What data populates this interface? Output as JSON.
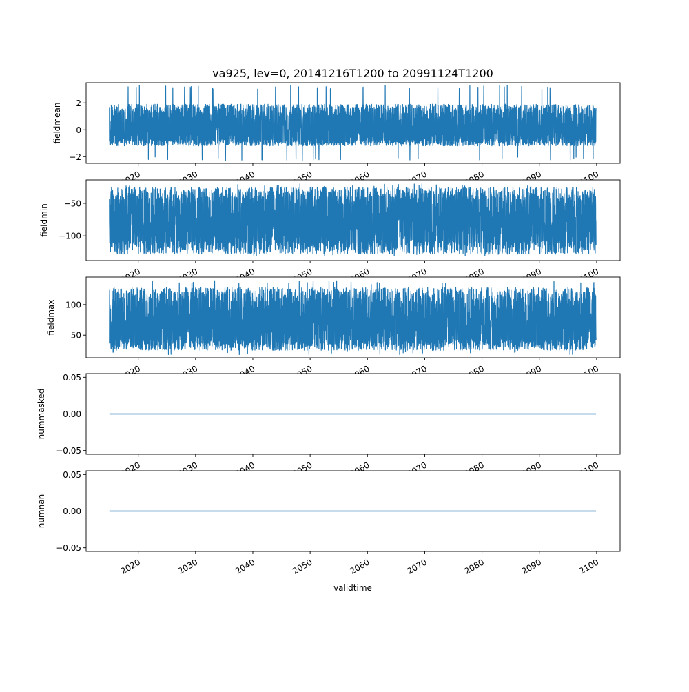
{
  "figure_title": "va925, lev=0, 20141216T1200 to 20991124T1200",
  "shared_xlabel": "validtime",
  "line_color": "#1f77b4",
  "chart_data": [
    {
      "type": "line",
      "ylabel": "fieldmean",
      "xlim": [
        2010.9,
        2104.1
      ],
      "ylim": [
        -2.5,
        3.5
      ],
      "xticks": [
        2020,
        2030,
        2040,
        2050,
        2060,
        2070,
        2080,
        2090,
        2100
      ],
      "xtick_labels": [
        "2020",
        "2030",
        "2040",
        "2050",
        "2060",
        "2070",
        "2080",
        "2090",
        "2100"
      ],
      "yticks": [
        -2,
        0,
        2
      ],
      "ytick_labels": [
        "−2",
        "0",
        "2"
      ],
      "series": [
        {
          "x_start": 2014.96,
          "x_end": 2099.9,
          "center": 0.1,
          "low_typical": -1.2,
          "high_typical": 1.9,
          "min": -2.3,
          "max": 3.3,
          "noisy": true
        }
      ]
    },
    {
      "type": "line",
      "ylabel": "fieldmin",
      "xlim": [
        2010.9,
        2104.1
      ],
      "ylim": [
        -138,
        -14
      ],
      "xticks": [
        2020,
        2030,
        2040,
        2050,
        2060,
        2070,
        2080,
        2090,
        2100
      ],
      "xtick_labels": [
        "2020",
        "2030",
        "2040",
        "2050",
        "2060",
        "2070",
        "2080",
        "2090",
        "2100"
      ],
      "yticks": [
        -100,
        -50
      ],
      "ytick_labels": [
        "−100",
        "−50"
      ],
      "series": [
        {
          "x_start": 2014.96,
          "x_end": 2099.9,
          "center": -75,
          "low_typical": -128,
          "high_typical": -25,
          "min": -132,
          "max": -20,
          "noisy": true
        }
      ]
    },
    {
      "type": "line",
      "ylabel": "fieldmax",
      "xlim": [
        2010.9,
        2104.1
      ],
      "ylim": [
        13,
        145
      ],
      "xticks": [
        2020,
        2030,
        2040,
        2050,
        2060,
        2070,
        2080,
        2090,
        2100
      ],
      "xtick_labels": [
        "2020",
        "2030",
        "2040",
        "2050",
        "2060",
        "2070",
        "2080",
        "2090",
        "2100"
      ],
      "yticks": [
        50,
        100
      ],
      "ytick_labels": [
        "50",
        "100"
      ],
      "series": [
        {
          "x_start": 2014.96,
          "x_end": 2099.9,
          "center": 70,
          "low_typical": 25,
          "high_typical": 128,
          "min": 17,
          "max": 139,
          "noisy": true
        }
      ]
    },
    {
      "type": "line",
      "ylabel": "nummasked",
      "xlim": [
        2010.9,
        2104.1
      ],
      "ylim": [
        -0.055,
        0.055
      ],
      "xticks": [
        2020,
        2030,
        2040,
        2050,
        2060,
        2070,
        2080,
        2090,
        2100
      ],
      "xtick_labels": [
        "2020",
        "2030",
        "2040",
        "2050",
        "2060",
        "2070",
        "2080",
        "2090",
        "2100"
      ],
      "yticks": [
        -0.05,
        0.0,
        0.05
      ],
      "ytick_labels": [
        "−0.05",
        "0.00",
        "0.05"
      ],
      "series": [
        {
          "x_start": 2014.96,
          "x_end": 2099.9,
          "value": 0.0,
          "noisy": false
        }
      ]
    },
    {
      "type": "line",
      "ylabel": "numnan",
      "xlim": [
        2010.9,
        2104.1
      ],
      "ylim": [
        -0.055,
        0.055
      ],
      "xticks": [
        2020,
        2030,
        2040,
        2050,
        2060,
        2070,
        2080,
        2090,
        2100
      ],
      "xtick_labels": [
        "2020",
        "2030",
        "2040",
        "2050",
        "2060",
        "2070",
        "2080",
        "2090",
        "2100"
      ],
      "yticks": [
        -0.05,
        0.0,
        0.05
      ],
      "ytick_labels": [
        "−0.05",
        "0.00",
        "0.05"
      ],
      "series": [
        {
          "x_start": 2014.96,
          "x_end": 2099.9,
          "value": 0.0,
          "noisy": false
        }
      ]
    }
  ]
}
